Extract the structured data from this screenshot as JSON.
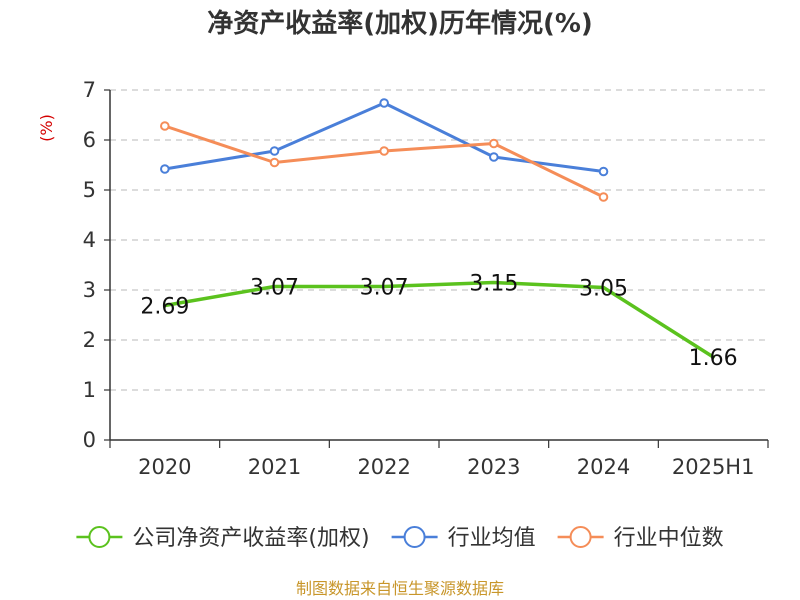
{
  "chart_data": {
    "type": "line",
    "title": "净资产收益率(加权)历年情况(%)",
    "ylabel": "(%)",
    "categories": [
      "2020",
      "2021",
      "2022",
      "2023",
      "2024",
      "2025H1"
    ],
    "ylim": [
      0,
      7
    ],
    "yticks": [
      0,
      1,
      2,
      3,
      4,
      5,
      6,
      7
    ],
    "grid": true,
    "legend_position": "bottom",
    "series": [
      {
        "name": "公司净资产收益率(加权)",
        "color": "#5bc21e",
        "values": [
          2.69,
          3.07,
          3.07,
          3.15,
          3.05,
          1.66
        ],
        "show_labels": true,
        "markers": false
      },
      {
        "name": "行业均值",
        "color": "#4a7fd9",
        "values": [
          5.42,
          5.78,
          6.74,
          5.66,
          5.37,
          null
        ],
        "show_labels": false,
        "markers": true
      },
      {
        "name": "行业中位数",
        "color": "#f58d58",
        "values": [
          6.28,
          5.55,
          5.78,
          5.93,
          4.86,
          null
        ],
        "show_labels": false,
        "markers": true
      }
    ],
    "data_labels": [
      "2.69",
      "3.07",
      "3.07",
      "3.15",
      "3.05",
      "1.66"
    ]
  },
  "source": "制图数据来自恒生聚源数据库"
}
